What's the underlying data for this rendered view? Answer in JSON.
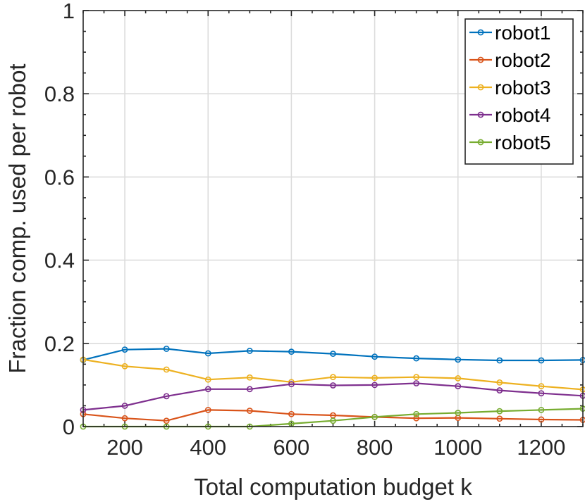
{
  "chart_data": {
    "type": "line",
    "title": "",
    "xlabel": "Total computation budget k",
    "ylabel": "Fraction comp. used per robot",
    "xlim": [
      100,
      1300
    ],
    "ylim": [
      0,
      1
    ],
    "x_ticks": [
      200,
      400,
      600,
      800,
      1000,
      1200
    ],
    "y_ticks": [
      0,
      0.2,
      0.4,
      0.6,
      0.8,
      1
    ],
    "y_tick_labels": [
      "0",
      "0.2",
      "0.4",
      "0.6",
      "0.8",
      "1"
    ],
    "grid": true,
    "legend_position": "top-right",
    "x": [
      100,
      200,
      300,
      400,
      500,
      600,
      700,
      800,
      900,
      1000,
      1100,
      1200,
      1300
    ],
    "series": [
      {
        "name": "robot1",
        "color": "#0072BD",
        "values": [
          0.16,
          0.185,
          0.187,
          0.176,
          0.182,
          0.18,
          0.175,
          0.168,
          0.164,
          0.161,
          0.159,
          0.159,
          0.16
        ]
      },
      {
        "name": "robot2",
        "color": "#D95319",
        "values": [
          0.03,
          0.02,
          0.014,
          0.04,
          0.038,
          0.03,
          0.027,
          0.023,
          0.02,
          0.021,
          0.019,
          0.017,
          0.016
        ]
      },
      {
        "name": "robot3",
        "color": "#EDB120",
        "values": [
          0.161,
          0.145,
          0.137,
          0.113,
          0.118,
          0.107,
          0.119,
          0.117,
          0.119,
          0.116,
          0.106,
          0.097,
          0.089
        ]
      },
      {
        "name": "robot4",
        "color": "#7E2F8E",
        "values": [
          0.04,
          0.05,
          0.073,
          0.09,
          0.09,
          0.102,
          0.099,
          0.1,
          0.104,
          0.097,
          0.087,
          0.08,
          0.074
        ]
      },
      {
        "name": "robot5",
        "color": "#77AC30",
        "values": [
          0.0,
          0.0,
          0.0,
          0.0,
          0.0,
          0.007,
          0.014,
          0.023,
          0.03,
          0.033,
          0.037,
          0.04,
          0.043
        ]
      }
    ]
  }
}
